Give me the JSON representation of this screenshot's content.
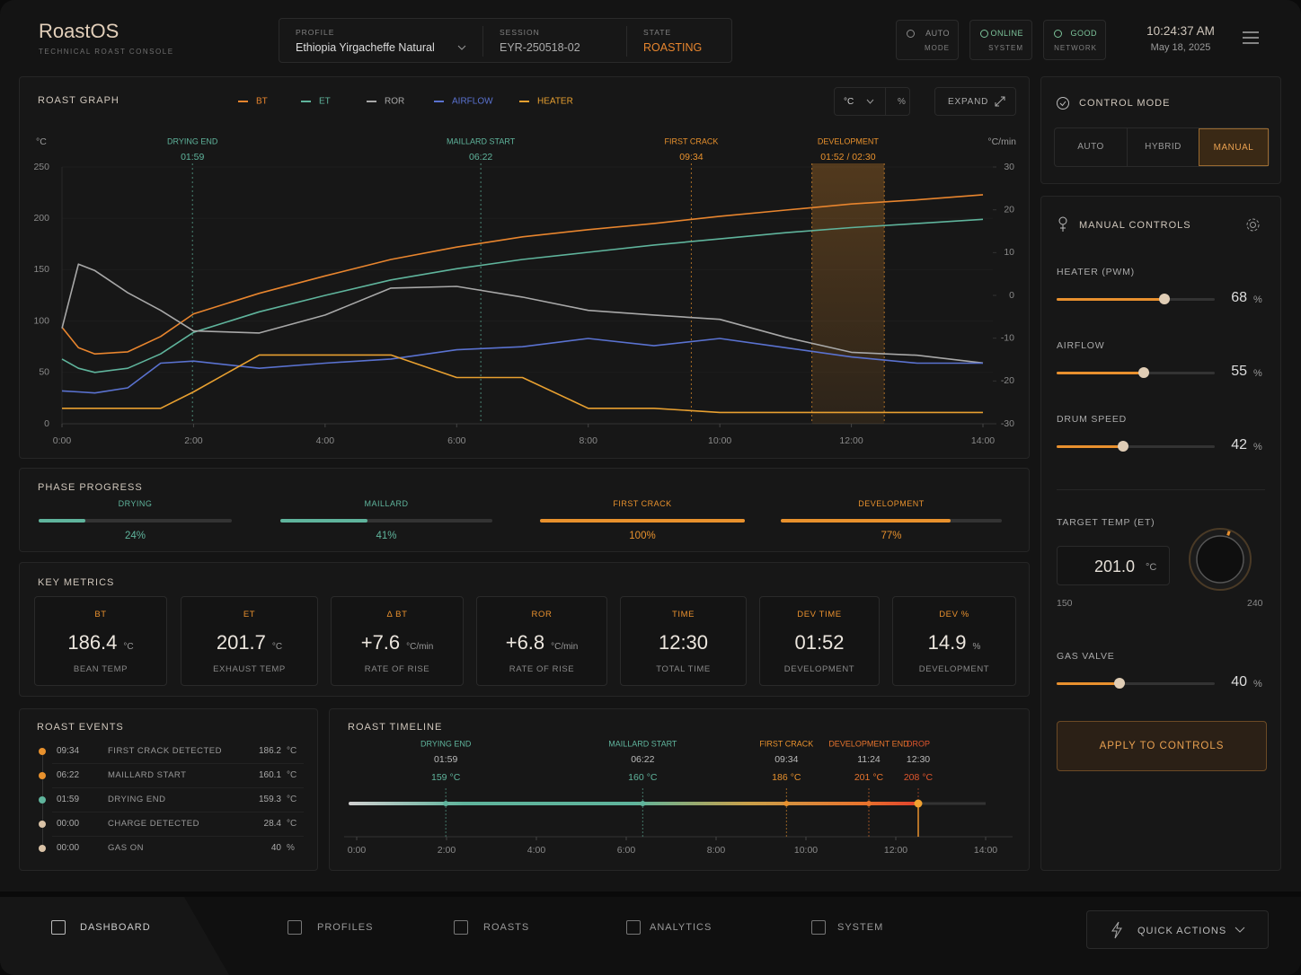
{
  "header": {
    "app_name": "RoastOS",
    "subtitle": "TECHNICAL ROAST CONSOLE",
    "profile": {
      "label": "PROFILE",
      "value": "Ethiopia Yirgacheffe Natural"
    },
    "session": {
      "label": "SESSION",
      "value": "EYR-250518-02"
    },
    "state": {
      "label": "STATE",
      "value": "ROASTING"
    },
    "status": [
      {
        "value": "AUTO",
        "label": "MODE",
        "color": "#8a8a8a"
      },
      {
        "value": "ONLINE",
        "label": "SYSTEM",
        "color": "#7cc39a"
      },
      {
        "value": "GOOD",
        "label": "NETWORK",
        "color": "#7cc39a"
      }
    ],
    "time": "10:24:37 AM",
    "date": "May 18, 2025"
  },
  "roast_graph": {
    "type": "line",
    "title": "ROAST GRAPH",
    "y_label": "°C",
    "y2_label": "°C/min",
    "unit_options": [
      "°C",
      "%"
    ],
    "expand": "EXPAND",
    "x": [
      0,
      15,
      30,
      60,
      90,
      120,
      180,
      240,
      300,
      360,
      420,
      480,
      540,
      600,
      660,
      720,
      780,
      840
    ],
    "xlim": [
      0,
      840
    ],
    "xticks": [
      {
        "value": 0,
        "label": "0:00"
      },
      {
        "value": 120,
        "label": "2:00"
      },
      {
        "value": 240,
        "label": "4:00"
      },
      {
        "value": 360,
        "label": "6:00"
      },
      {
        "value": 480,
        "label": "8:00"
      },
      {
        "value": 600,
        "label": "10:00"
      },
      {
        "value": 720,
        "label": "12:00"
      },
      {
        "value": 840,
        "label": "14:00"
      }
    ],
    "ylim": [
      0,
      250
    ],
    "yticks": [
      0,
      50,
      100,
      150,
      200,
      250
    ],
    "y2lim": [
      -30,
      30
    ],
    "y2ticks": [
      -30,
      -20,
      -10,
      0,
      10,
      20,
      30
    ],
    "series": [
      {
        "name": "BT",
        "color": "#e8852e",
        "values": [
          94,
          74,
          68,
          70,
          85,
          107,
          127,
          144,
          160,
          172,
          182,
          189,
          195,
          202,
          208,
          214,
          218,
          223
        ]
      },
      {
        "name": "ET",
        "color": "#5fb49c",
        "values": [
          63,
          54,
          50,
          54,
          68,
          89,
          109,
          125,
          140,
          151,
          160,
          167,
          174,
          180,
          186,
          191,
          195,
          199
        ]
      },
      {
        "name": "ROR",
        "color": "#a8a8a8",
        "axis": "y2",
        "values": [
          -7.7,
          7.3,
          5.8,
          0.6,
          -3.5,
          -8.3,
          -8.8,
          -4.6,
          1.7,
          2.1,
          -0.4,
          -3.5,
          -4.6,
          -5.6,
          -9.8,
          -13.3,
          -14,
          -15.8
        ]
      },
      {
        "name": "AIRFLOW",
        "color": "#5a72d0",
        "values": [
          32,
          31,
          30,
          35,
          59,
          61,
          54,
          59,
          63,
          72,
          75,
          83,
          76,
          83,
          74,
          65,
          59,
          59
        ]
      },
      {
        "name": "HEATER",
        "color": "#e8a030",
        "values": [
          15,
          15,
          15,
          15,
          15,
          31,
          67,
          67,
          67,
          45,
          45,
          15,
          15,
          11,
          11,
          11,
          11,
          11
        ]
      }
    ],
    "markers": [
      {
        "label": "DRYING END",
        "time": "01:59",
        "color": "#5fb49c"
      },
      {
        "label": "MAILLARD START",
        "time": "06:22",
        "color": "#5fb49c"
      },
      {
        "label": "FIRST CRACK",
        "time": "09:34",
        "color": "#e8912d"
      }
    ],
    "development": {
      "label": "DEVELOPMENT",
      "time": "01:52 / 02:30",
      "color": "#e8912d"
    }
  },
  "control_mode": {
    "title": "CONTROL MODE",
    "options": [
      "AUTO",
      "HYBRID",
      "MANUAL"
    ],
    "selected": 2
  },
  "manual_controls": {
    "title": "MANUAL CONTROLS",
    "sliders": [
      {
        "label": "HEATER (PWM)",
        "value": 68,
        "unit": "%"
      },
      {
        "label": "AIRFLOW",
        "value": 55,
        "unit": "%"
      },
      {
        "label": "DRUM SPEED",
        "value": 42,
        "unit": "%"
      },
      {
        "label": "GAS VALVE",
        "value": 40,
        "unit": "%"
      }
    ],
    "target": {
      "label": "TARGET TEMP (ET)",
      "value": 201,
      "value_label": "201.0",
      "unit": "°C",
      "min": 150,
      "max": 240
    },
    "apply": "APPLY TO CONTROLS"
  },
  "phase_progress": {
    "title": "PHASE PROGRESS",
    "phases": [
      {
        "name": "DRYING",
        "value": 24,
        "unit": "%",
        "color": "#5fb49c"
      },
      {
        "name": "MAILLARD",
        "value": 41,
        "unit": "%",
        "color": "#5fb49c"
      },
      {
        "name": "FIRST CRACK",
        "value": 100,
        "unit": "%",
        "color": "#e8912d"
      },
      {
        "name": "DEVELOPMENT",
        "value": 77,
        "unit": "%",
        "color": "#e8912d"
      }
    ]
  },
  "key_metrics": {
    "title": "KEY METRICS",
    "cards": [
      {
        "label": "BT",
        "value": 186.4,
        "unit": "°C",
        "caption": "BEAN TEMP"
      },
      {
        "label": "ET",
        "value": 201.7,
        "unit": "°C",
        "caption": "EXHAUST TEMP"
      },
      {
        "label": "Δ BT",
        "value": "+7.6",
        "unit": "°C/min",
        "caption": "RATE OF RISE"
      },
      {
        "label": "ROR",
        "value": "+6.8",
        "unit": "°C/min",
        "caption": "RATE OF RISE"
      },
      {
        "label": "TIME",
        "value": "12:30",
        "caption": "TOTAL TIME"
      },
      {
        "label": "DEV TIME",
        "value": "01:52",
        "caption": "DEVELOPMENT"
      },
      {
        "label": "DEV %",
        "value": 14.9,
        "unit": "%",
        "caption": "DEVELOPMENT"
      }
    ]
  },
  "roast_events": {
    "title": "ROAST EVENTS",
    "rows": [
      {
        "time": "09:34",
        "name": "FIRST CRACK DETECTED",
        "value": 186.2,
        "unit": "°C",
        "color": "#e8912d"
      },
      {
        "time": "06:22",
        "name": "MAILLARD START",
        "value": 160.1,
        "unit": "°C",
        "color": "#e8912d"
      },
      {
        "time": "01:59",
        "name": "DRYING END",
        "value": 159.3,
        "unit": "°C",
        "color": "#5fb49c"
      },
      {
        "time": "00:00",
        "name": "CHARGE DETECTED",
        "value": 28.4,
        "unit": "°C",
        "color": "#d9c2a6"
      },
      {
        "time": "00:00",
        "name": "GAS ON",
        "value": 40,
        "unit": "%",
        "color": "#d9c2a6"
      }
    ]
  },
  "roast_timeline": {
    "title": "ROAST TIMELINE",
    "xlim": [
      0,
      840
    ],
    "xticks": [
      {
        "value": 0,
        "label": "0:00"
      },
      {
        "value": 120,
        "label": "2:00"
      },
      {
        "value": 240,
        "label": "4:00"
      },
      {
        "value": 360,
        "label": "6:00"
      },
      {
        "value": 480,
        "label": "8:00"
      },
      {
        "value": 600,
        "label": "10:00"
      },
      {
        "value": 720,
        "label": "12:00"
      },
      {
        "value": 840,
        "label": "14:00"
      }
    ],
    "events": [
      {
        "label": "DRYING END",
        "time": "01:59",
        "temp": 159,
        "unit": "°C",
        "color": "#5fb49c"
      },
      {
        "label": "MAILLARD START",
        "time": "06:22",
        "temp": 160,
        "unit": "°C",
        "color": "#5fb49c"
      },
      {
        "label": "FIRST CRACK",
        "time": "09:34",
        "temp": 186,
        "unit": "°C",
        "color": "#e8912d"
      },
      {
        "label": "DEVELOPMENT END",
        "time": "11:24",
        "temp": 201,
        "unit": "°C",
        "color": "#e8742d"
      },
      {
        "label": "DROP",
        "time": "12:30",
        "temp": 208,
        "unit": "°C",
        "color": "#e0562d"
      }
    ]
  },
  "nav": {
    "items": [
      "DASHBOARD",
      "PROFILES",
      "ROASTS",
      "ANALYTICS",
      "SYSTEM"
    ],
    "selected": 0,
    "quick_actions": "QUICK ACTIONS"
  }
}
